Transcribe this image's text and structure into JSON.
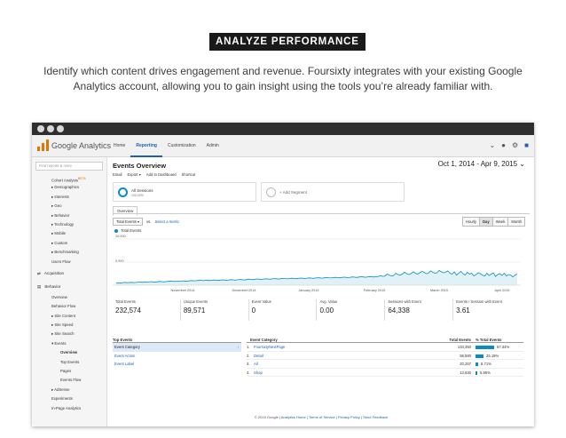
{
  "heading": "ANALYZE PERFORMANCE",
  "subtitle": "Identify which content drives engagement and revenue. Foursixty integrates with your existing Google Analytics account, allowing you to gain insight using the tools you’re already familiar with.",
  "ga": {
    "logo_text": "Google Analytics",
    "nav": [
      "Home",
      "Reporting",
      "Customization",
      "Admin"
    ],
    "active_nav": "Reporting",
    "icons": [
      "chevron-down-icon",
      "bell-icon",
      "gear-icon",
      "account-icon"
    ],
    "sidebar": {
      "search_placeholder": "Find reports & more",
      "items_top": [
        {
          "label": "Cohort Analysis",
          "badge": "BETA",
          "indent": 1
        },
        {
          "label": "▸ Demographics",
          "indent": 1
        },
        {
          "label": "▸ Interests",
          "indent": 1
        },
        {
          "label": "▸ Geo",
          "indent": 1
        },
        {
          "label": "▸ Behavior",
          "indent": 1
        },
        {
          "label": "▸ Technology",
          "indent": 1
        },
        {
          "label": "▸ Mobile",
          "indent": 1
        },
        {
          "label": "▸ Custom",
          "indent": 1
        },
        {
          "label": "▸ Benchmarking",
          "indent": 1
        },
        {
          "label": "Users Flow",
          "indent": 1
        }
      ],
      "acquisition": "Acquisition",
      "behavior": "Behavior",
      "items_behavior": [
        {
          "label": "Overview",
          "indent": 1
        },
        {
          "label": "Behavior Flow",
          "indent": 1
        },
        {
          "label": "▸ Site Content",
          "indent": 1
        },
        {
          "label": "▸ Site Speed",
          "indent": 1
        },
        {
          "label": "▸ Site Search",
          "indent": 1
        },
        {
          "label": "▾ Events",
          "indent": 1
        },
        {
          "label": "Overview",
          "indent": 2,
          "selected": true
        },
        {
          "label": "Top Events",
          "indent": 2
        },
        {
          "label": "Pages",
          "indent": 2
        },
        {
          "label": "Events Flow",
          "indent": 2
        },
        {
          "label": "▸ AdSense",
          "indent": 1
        },
        {
          "label": "Experiments",
          "indent": 1
        },
        {
          "label": "In-Page Analytics",
          "indent": 1
        }
      ]
    },
    "main": {
      "title": "Events Overview",
      "date_range": "Oct 1, 2014 - Apr 9, 2015",
      "toolbar": [
        "Email",
        "Export ▾",
        "Add to Dashboard",
        "Shortcut"
      ],
      "segment_all": "All Sessions",
      "segment_all_sub": "100.00%",
      "segment_add": "+ Add Segment",
      "tab": "Overview",
      "metric_select": "Total Events ▾",
      "vs": "vs.",
      "select_metric": "Select a metric",
      "granularity": [
        "Hourly",
        "Day",
        "Week",
        "Month"
      ],
      "granularity_active": "Day",
      "stats": [
        {
          "label": "Total Events",
          "value": "232,574"
        },
        {
          "label": "Unique Events",
          "value": "89,571"
        },
        {
          "label": "Event Value",
          "value": "0"
        },
        {
          "label": "Avg. Value",
          "value": "0.00"
        },
        {
          "label": "Sessions with Event",
          "value": "64,338"
        },
        {
          "label": "Events / Session with Event",
          "value": "3.61"
        }
      ],
      "top_events": {
        "header": "Top Events",
        "rows": [
          "Event Category",
          "Event Action",
          "Event Label"
        ]
      },
      "event_table": {
        "headers": [
          "Event Category",
          "Total Events",
          "% Total Events"
        ],
        "rows": [
          {
            "num": "1.",
            "name": "FoursixtyNextPage",
            "total": "133,350",
            "pct": "57.34%",
            "frac": 0.5734
          },
          {
            "num": "2.",
            "name": "Detail",
            "total": "58,580",
            "pct": "25.19%",
            "frac": 0.2519
          },
          {
            "num": "3.",
            "name": "All",
            "total": "20,267",
            "pct": "8.71%",
            "frac": 0.0871
          },
          {
            "num": "4.",
            "name": "Shop",
            "total": "13,830",
            "pct": "5.95%",
            "frac": 0.0595
          }
        ]
      },
      "footer": {
        "copyright": "© 2015 Google |",
        "links": [
          "Analytics Home",
          "Terms of Service",
          "Privacy Policy",
          "Send Feedback"
        ]
      }
    },
    "chart_data": {
      "type": "line",
      "series": [
        {
          "name": "Total Events",
          "color": "#058dc7"
        }
      ],
      "y_ticks": [
        "10,000",
        "5,000"
      ],
      "ylim": [
        0,
        10000
      ],
      "x_ticks": [
        "November 2014",
        "December 2014",
        "January 2015",
        "February 2015",
        "March 2015",
        "April 2015"
      ],
      "values": [
        500,
        520,
        480,
        560,
        600,
        540,
        580,
        620,
        560,
        600,
        650,
        700,
        620,
        680,
        640,
        700,
        760,
        720,
        680,
        740,
        800,
        760,
        720,
        780,
        820,
        900,
        860,
        800,
        840,
        880,
        900,
        940,
        860,
        900,
        960,
        1000,
        940,
        980,
        1020,
        1060,
        980,
        1040,
        1100,
        1000,
        1060,
        1120,
        1080,
        1020,
        1100,
        1160,
        1120,
        1060,
        1140,
        1200,
        1160,
        1100,
        1180,
        1240,
        1200,
        1140,
        1220,
        1300,
        1260,
        1200,
        1280,
        1340,
        1300,
        1240,
        1320,
        1380,
        1340,
        1280,
        1360,
        1420,
        1380,
        1320,
        1400,
        1460,
        1420,
        1360,
        1440,
        1500,
        1460,
        1400,
        1480,
        1540,
        1500,
        1440,
        1520,
        1580,
        1540,
        1480,
        1560,
        1620,
        1580,
        1520,
        1600,
        1660,
        1620,
        1560,
        1640,
        1700,
        1660,
        1600,
        1680,
        1740,
        1700,
        1640,
        1720,
        1780,
        1740,
        1680,
        1760,
        1820,
        1780,
        1720,
        1800,
        1860,
        1820,
        1760,
        1840,
        1900,
        2100,
        1900,
        2000,
        2400,
        2200,
        2000,
        2100,
        2600,
        2300,
        2200,
        2400,
        2800,
        2500,
        2300,
        2500,
        2900,
        2600,
        2400,
        2700,
        3000,
        2800,
        2500,
        2600,
        3100,
        2800,
        2600,
        2700,
        3200,
        2900,
        2700,
        2800,
        3100,
        2600,
        2400,
        2900,
        2200,
        2600,
        3000,
        2500,
        2200,
        2800,
        2400,
        2600,
        2000,
        2300,
        2700,
        2500,
        2200,
        2000,
        2600,
        2100,
        2400,
        2700,
        1900,
        2300,
        2500,
        2100,
        2600,
        2000,
        2300,
        2200,
        1800,
        2200,
        2400
      ]
    }
  }
}
